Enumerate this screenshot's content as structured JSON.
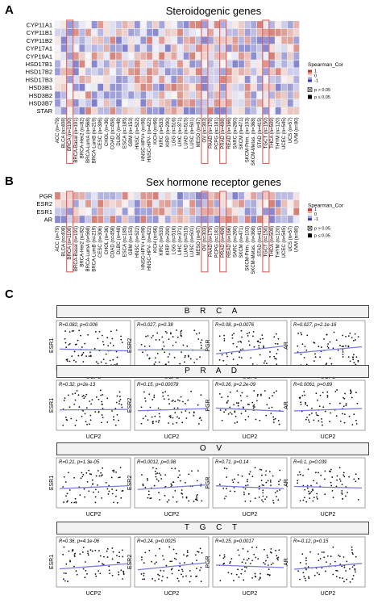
{
  "panelA": {
    "letter": "A",
    "title": "Steroidogenic genes",
    "genes": [
      "CYP11A1",
      "CYP11B1",
      "CYP11B2",
      "CYP17A1",
      "CYP19A1",
      "HSD17B1",
      "HSD17B2",
      "HSD17B3",
      "HSD3B1",
      "HSD3B2",
      "HSD3B7",
      "STAR"
    ],
    "legend_title": "Spearman_Cor",
    "legend_ticks": [
      "1",
      "0",
      "-1"
    ],
    "pval_labels": [
      "p > 0.05",
      "p ≤ 0.05"
    ]
  },
  "panelB": {
    "letter": "B",
    "title": "Sex hormone receptor genes",
    "genes": [
      "PGR",
      "ESR2",
      "ESR1",
      "AR"
    ],
    "legend_title": "Spearman_Cor",
    "legend_ticks": [
      "1",
      "0",
      "-1"
    ],
    "pval_labels": [
      "p > 0.05",
      "p ≤ 0.05"
    ]
  },
  "cancers": [
    "ACC (n=79)",
    "BLCA (n=408)",
    "BRCA (n=1100)",
    "BRCA-Basal (n=191)",
    "BRCA-Her2 (n=82)",
    "BRCA-LumA (n=568)",
    "BRCA-LumB (n=219)",
    "CESC (n=306)",
    "CHOL (n=36)",
    "COAD (n=458)",
    "DLBC (n=48)",
    "ESCA (n=185)",
    "GBM (n=153)",
    "HNSC (n=522)",
    "HNSC-HPV+ (n=98)",
    "HNSC-HPV- (n=422)",
    "KICH (n=66)",
    "KIRC (n=533)",
    "KIRP (n=290)",
    "LGG (n=516)",
    "LIHC (n=371)",
    "LUAD (n=515)",
    "LUSC (n=501)",
    "MESO (n=87)",
    "OV (n=303)",
    "PAAD (n=179)",
    "PCPG (n=181)",
    "PRAD (n=498)",
    "READ (n=166)",
    "SARC (n=260)",
    "SKCM (n=471)",
    "SKCM-Prim. (n=103)",
    "SKCM-Metas. (n=368)",
    "STAD (n=415)",
    "TGCT (n=150)",
    "THCA (n=509)",
    "THYM (n=120)",
    "UCEC (n=545)",
    "UCS (n=57)",
    "UVM (n=80)"
  ],
  "highlighted_cancers": [
    "BRCA (n=1100)",
    "OV (n=303)",
    "PRAD (n=498)",
    "TGCT (n=150)"
  ],
  "panelC": {
    "letter": "C",
    "xlabel": "UCP2",
    "groups": [
      {
        "title": "B R C A",
        "plots": [
          {
            "ylabel": "ESR1",
            "stat": "R=0.082, p=0.006"
          },
          {
            "ylabel": "ESR2",
            "stat": "R=0.027, p=0.38"
          },
          {
            "ylabel": "PGR",
            "stat": "R=0.08, p=0.0076"
          },
          {
            "ylabel": "AR",
            "stat": "R=0.027, p=2.1e-16"
          }
        ]
      },
      {
        "title": "P R A D",
        "plots": [
          {
            "ylabel": "ESR1",
            "stat": "R=0.32, p=2e-13"
          },
          {
            "ylabel": "ESR2",
            "stat": "R=0.15, p=0.00078"
          },
          {
            "ylabel": "PGR",
            "stat": "R=0.26, p=2.2e-09"
          },
          {
            "ylabel": "AR",
            "stat": "R=0.0061, p=0.89"
          }
        ]
      },
      {
        "title": "O V",
        "plots": [
          {
            "ylabel": "ESR1",
            "stat": "R=0.21, p=1.3e-05"
          },
          {
            "ylabel": "ESR2",
            "stat": "R=0.0012, p=0.98"
          },
          {
            "ylabel": "PGR",
            "stat": "R=0.71, p=0.14"
          },
          {
            "ylabel": "AR",
            "stat": "R=0.1, p=0.039"
          }
        ]
      },
      {
        "title": "T G C T",
        "plots": [
          {
            "ylabel": "ESR1",
            "stat": "R=0.36, p=4.1e-06"
          },
          {
            "ylabel": "ESR2",
            "stat": "R=0.24, p=0.0025"
          },
          {
            "ylabel": "PGR",
            "stat": "R=0.25, p=0.0017"
          },
          {
            "ylabel": "AR",
            "stat": "R=-0.12, p=0.15"
          }
        ]
      }
    ]
  },
  "colors": {
    "positive": "#c0392b",
    "negative": "#3b3bb3",
    "highlight_box": "#d9534f",
    "trend_line": "#7a7adf"
  }
}
